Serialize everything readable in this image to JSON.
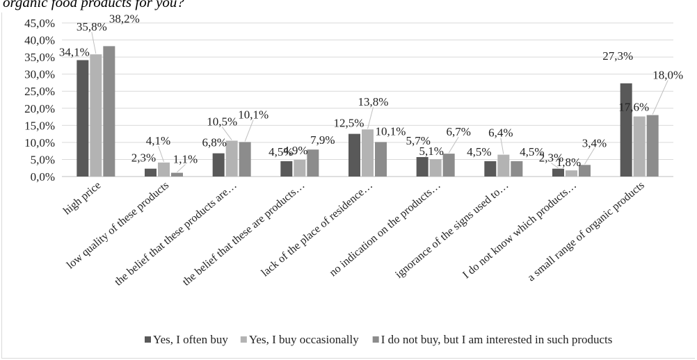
{
  "caption": "organic food products for you?",
  "chart_data": {
    "type": "bar",
    "title": "",
    "xlabel": "",
    "ylabel": "",
    "ylim": [
      0,
      45
    ],
    "yticks": [
      "0,0%",
      "5,0%",
      "10,0%",
      "15,0%",
      "20,0%",
      "25,0%",
      "30,0%",
      "35,0%",
      "40,0%",
      "45,0%"
    ],
    "grid": true,
    "legend_position": "bottom",
    "categories": [
      "high price",
      "low quality of these products",
      "the belief that these products are…",
      "the belief that these are products…",
      "lack of the place of residence…",
      "no indication on the products…",
      "ignorance of the signs used to…",
      "I do not know which products…",
      "a small range of organic products"
    ],
    "series": [
      {
        "name": "Yes, I often buy",
        "color": "#595959",
        "values": [
          34.1,
          2.3,
          6.8,
          4.5,
          12.5,
          5.7,
          4.5,
          2.3,
          27.3
        ],
        "labels": [
          "34,1%",
          "2,3%",
          "6,8%",
          "4,5%",
          "12,5%",
          "5,7%",
          "4,5%",
          "2,3%",
          "27,3%"
        ]
      },
      {
        "name": "Yes, I buy occasionally",
        "color": "#b3b3b3",
        "values": [
          35.8,
          4.1,
          10.5,
          4.9,
          13.8,
          5.1,
          6.4,
          1.8,
          17.6
        ],
        "labels": [
          "35,8%",
          "4,1%",
          "10,5%",
          "4,9%",
          "13,8%",
          "5,1%",
          "6,4%",
          "1,8%",
          "17,6%"
        ]
      },
      {
        "name": "I do not buy, but I am interested in such products",
        "color": "#8c8c8c",
        "values": [
          38.2,
          1.1,
          10.1,
          7.9,
          10.1,
          6.7,
          4.5,
          3.4,
          18.0
        ],
        "labels": [
          "38,2%",
          "1,1%",
          "10,1%",
          "7,9%",
          "10,1%",
          "6,7%",
          "4,5%",
          "3,4%",
          "18,0%"
        ]
      }
    ]
  }
}
